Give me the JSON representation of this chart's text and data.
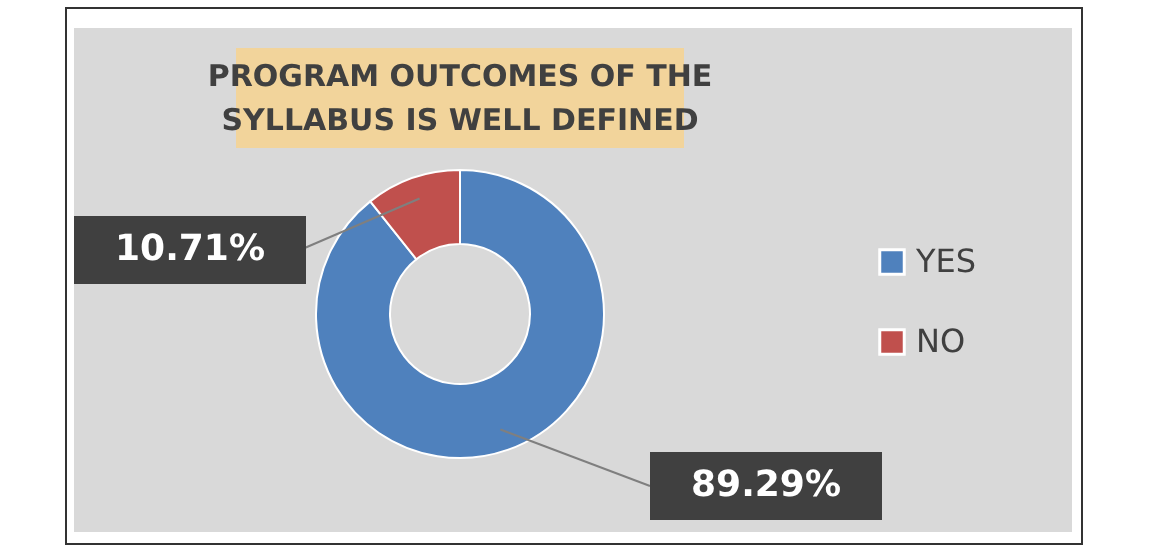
{
  "chart_data": {
    "type": "donut",
    "title": "PROGRAM OUTCOMES OF THE SYLLABUS IS WELL DEFINED",
    "categories": [
      "YES",
      "NO"
    ],
    "values": [
      89.29,
      10.71
    ],
    "colors": [
      "#4f81bd",
      "#c0504d"
    ],
    "value_labels": [
      "89.29%",
      "10.71%"
    ],
    "legend": "right"
  }
}
